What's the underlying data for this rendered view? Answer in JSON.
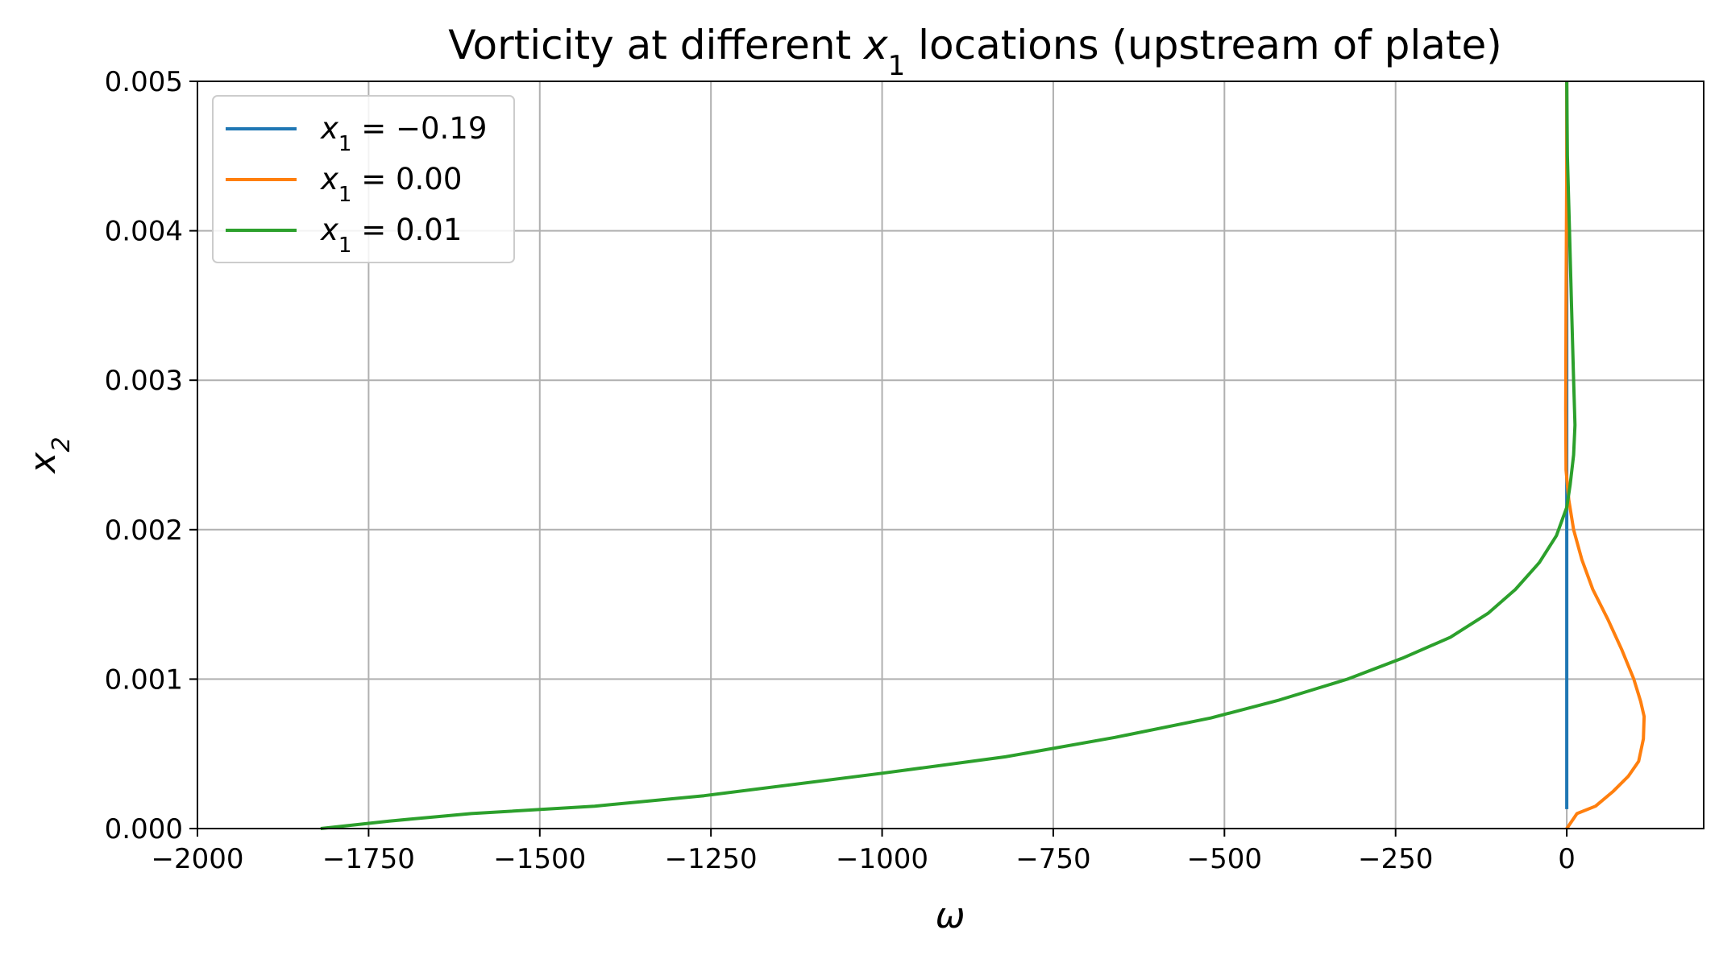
{
  "chart_data": {
    "type": "line",
    "title": {
      "prefix": "Vorticity at different ",
      "var": "x",
      "sub": "1",
      "suffix": " locations (upstream of plate)"
    },
    "xlabel": "ω",
    "ylabel": {
      "var": "x",
      "sub": "2"
    },
    "xlim": [
      -2000,
      200
    ],
    "ylim": [
      0,
      0.005
    ],
    "xticks": [
      -2000,
      -1750,
      -1500,
      -1250,
      -1000,
      -750,
      -500,
      -250,
      0
    ],
    "xtick_labels": [
      "−2000",
      "−1750",
      "−1500",
      "−1250",
      "−1000",
      "−750",
      "−500",
      "−250",
      "0"
    ],
    "yticks": [
      0,
      0.001,
      0.002,
      0.003,
      0.004,
      0.005
    ],
    "ytick_labels": [
      "0.000",
      "0.001",
      "0.002",
      "0.003",
      "0.004",
      "0.005"
    ],
    "grid": true,
    "legend_position": "upper-left",
    "series": [
      {
        "name": "x1 = −0.19",
        "legend": {
          "var": "x",
          "sub": "1",
          "rest": " = −0.19"
        },
        "color": "#1f77b4",
        "x": [
          0,
          0,
          0,
          0,
          0,
          0,
          0
        ],
        "y": [
          0.00013,
          0.001,
          0.002,
          0.003,
          0.004,
          0.0045,
          0.005
        ]
      },
      {
        "name": "x1 = 0.00",
        "legend": {
          "var": "x",
          "sub": "1",
          "rest": " = 0.00"
        },
        "color": "#ff7f0e",
        "x": [
          0,
          15,
          42,
          68,
          90,
          105,
          112,
          113,
          108,
          98,
          80,
          60,
          38,
          22,
          10,
          3,
          -1,
          -1.5,
          -1,
          0,
          0
        ],
        "y": [
          0,
          0.0001,
          0.00015,
          0.00025,
          0.00035,
          0.00045,
          0.0006,
          0.00075,
          0.00085,
          0.001,
          0.0012,
          0.0014,
          0.0016,
          0.0018,
          0.002,
          0.0022,
          0.0024,
          0.0028,
          0.0035,
          0.0045,
          0.005
        ]
      },
      {
        "name": "x1 = 0.01",
        "legend": {
          "var": "x",
          "sub": "1",
          "rest": " = 0.01"
        },
        "color": "#2ca02c",
        "x": [
          -1820,
          -1720,
          -1600,
          -1420,
          -1260,
          -1000,
          -820,
          -660,
          -520,
          -420,
          -320,
          -240,
          -170,
          -115,
          -75,
          -40,
          -15,
          0,
          5,
          10,
          12,
          10,
          7,
          4,
          1,
          0
        ],
        "y": [
          0,
          5e-05,
          0.0001,
          0.00015,
          0.00022,
          0.00037,
          0.00048,
          0.00061,
          0.00074,
          0.00086,
          0.001,
          0.00114,
          0.00128,
          0.00144,
          0.0016,
          0.00178,
          0.00196,
          0.00215,
          0.0023,
          0.0025,
          0.0027,
          0.003,
          0.0035,
          0.004,
          0.0045,
          0.005
        ]
      }
    ]
  }
}
